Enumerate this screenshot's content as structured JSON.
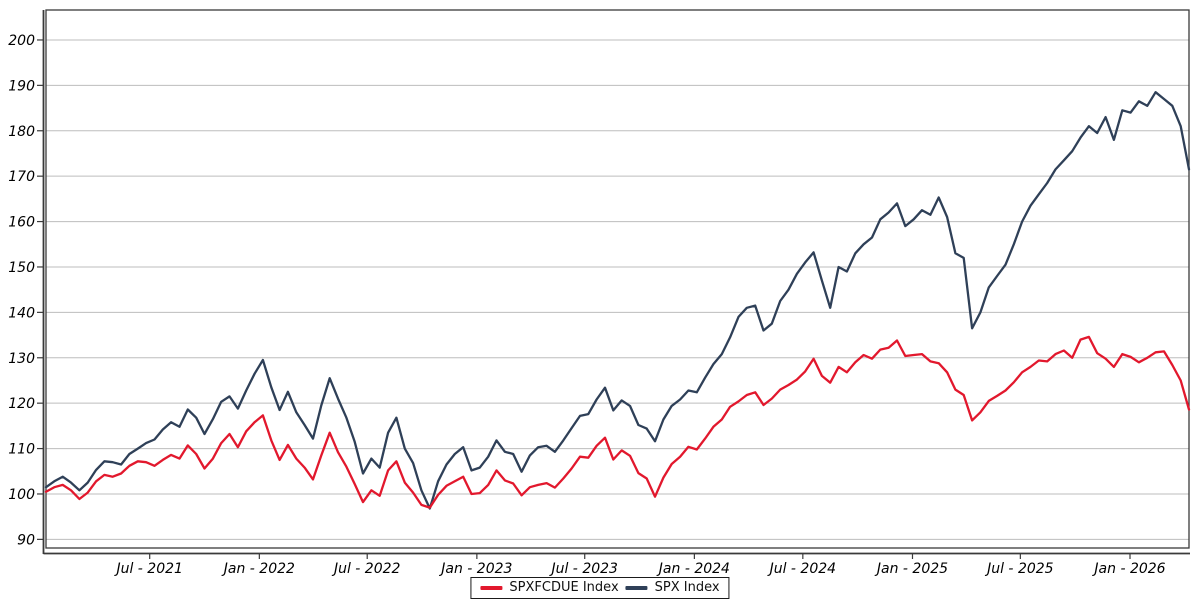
{
  "chart_data": {
    "type": "line",
    "title": "",
    "xlabel": "",
    "ylabel": "",
    "grid": "horizontal",
    "legend_position": "bottom-center",
    "y_ticks": [
      90,
      100,
      110,
      120,
      130,
      140,
      150,
      160,
      170,
      180,
      190,
      200
    ],
    "ylim": [
      88.1,
      206.6
    ],
    "x_tick_labels": [
      {
        "label": "Jul - 2021",
        "date": "2021-07-01"
      },
      {
        "label": "Jan - 2022",
        "date": "2022-01-01"
      },
      {
        "label": "Jul - 2022",
        "date": "2022-07-01"
      },
      {
        "label": "Jan - 2023",
        "date": "2023-01-01"
      },
      {
        "label": "Jul - 2023",
        "date": "2023-07-01"
      },
      {
        "label": "Jan - 2024",
        "date": "2024-01-01"
      },
      {
        "label": "Jul - 2024",
        "date": "2024-07-01"
      },
      {
        "label": "Jan - 2025",
        "date": "2025-01-01"
      },
      {
        "label": "Jul - 2025",
        "date": "2025-07-01"
      },
      {
        "label": "Jan - 2026",
        "date": "2026-01-01"
      }
    ],
    "dates": [
      "2021-01-08",
      "2021-01-22",
      "2021-02-05",
      "2021-02-19",
      "2021-03-05",
      "2021-03-19",
      "2021-04-02",
      "2021-04-16",
      "2021-04-30",
      "2021-05-14",
      "2021-05-28",
      "2021-06-11",
      "2021-06-25",
      "2021-07-09",
      "2021-07-23",
      "2021-08-06",
      "2021-08-20",
      "2021-09-03",
      "2021-09-17",
      "2021-10-01",
      "2021-10-15",
      "2021-10-29",
      "2021-11-12",
      "2021-11-26",
      "2021-12-10",
      "2021-12-24",
      "2022-01-07",
      "2022-01-21",
      "2022-02-04",
      "2022-02-18",
      "2022-03-04",
      "2022-03-18",
      "2022-04-01",
      "2022-04-15",
      "2022-04-29",
      "2022-05-13",
      "2022-05-27",
      "2022-06-10",
      "2022-06-24",
      "2022-07-08",
      "2022-07-22",
      "2022-08-05",
      "2022-08-19",
      "2022-09-02",
      "2022-09-16",
      "2022-09-30",
      "2022-10-14",
      "2022-10-28",
      "2022-11-11",
      "2022-11-25",
      "2022-12-09",
      "2022-12-23",
      "2023-01-06",
      "2023-01-20",
      "2023-02-03",
      "2023-02-17",
      "2023-03-03",
      "2023-03-17",
      "2023-03-31",
      "2023-04-14",
      "2023-04-28",
      "2023-05-12",
      "2023-05-26",
      "2023-06-09",
      "2023-06-23",
      "2023-07-07",
      "2023-07-21",
      "2023-08-04",
      "2023-08-18",
      "2023-09-01",
      "2023-09-15",
      "2023-09-29",
      "2023-10-13",
      "2023-10-27",
      "2023-11-10",
      "2023-11-24",
      "2023-12-08",
      "2023-12-22",
      "2024-01-05",
      "2024-01-19",
      "2024-02-02",
      "2024-02-16",
      "2024-03-01",
      "2024-03-15",
      "2024-03-29",
      "2024-04-12",
      "2024-04-26",
      "2024-05-10",
      "2024-05-24",
      "2024-06-07",
      "2024-06-21",
      "2024-07-05",
      "2024-07-19",
      "2024-08-02",
      "2024-08-16",
      "2024-08-30",
      "2024-09-13",
      "2024-09-27",
      "2024-10-11",
      "2024-10-25",
      "2024-11-08",
      "2024-11-22",
      "2024-12-06",
      "2024-12-20",
      "2025-01-03",
      "2025-01-17",
      "2025-01-31",
      "2025-02-14",
      "2025-02-28",
      "2025-03-14",
      "2025-03-28",
      "2025-04-11",
      "2025-04-25",
      "2025-05-09",
      "2025-05-23",
      "2025-06-06",
      "2025-06-20",
      "2025-07-04",
      "2025-07-18",
      "2025-08-01",
      "2025-08-15",
      "2025-08-29",
      "2025-09-12",
      "2025-09-26",
      "2025-10-10",
      "2025-10-24",
      "2025-11-07",
      "2025-11-21",
      "2025-12-05",
      "2025-12-19",
      "2026-01-02",
      "2026-01-16",
      "2026-01-30",
      "2026-02-13",
      "2026-02-27",
      "2026-03-13",
      "2026-03-27",
      "2026-04-10"
    ],
    "series": [
      {
        "name": "SPXFCDUE Index",
        "color": "#e2182d",
        "values": [
          100.5,
          101.5,
          102.0,
          100.8,
          98.9,
          100.3,
          102.8,
          104.2,
          103.8,
          104.5,
          106.2,
          107.2,
          107.0,
          106.2,
          107.5,
          108.6,
          107.8,
          110.7,
          108.8,
          105.6,
          107.8,
          111.2,
          113.2,
          110.3,
          113.8,
          115.8,
          117.3,
          111.8,
          107.5,
          110.8,
          107.8,
          105.8,
          103.2,
          108.5,
          113.5,
          109.2,
          106.0,
          102.2,
          98.2,
          100.8,
          99.6,
          105.2,
          107.2,
          102.5,
          100.3,
          97.6,
          97.0,
          99.8,
          101.8,
          102.8,
          103.8,
          100.0,
          100.2,
          102.0,
          105.2,
          103.0,
          102.3,
          99.7,
          101.5,
          102.0,
          102.4,
          101.4,
          103.4,
          105.6,
          108.2,
          108.0,
          110.6,
          112.4,
          107.6,
          109.6,
          108.4,
          104.6,
          103.4,
          99.4,
          103.6,
          106.6,
          108.2,
          110.4,
          109.8,
          112.2,
          114.8,
          116.4,
          119.2,
          120.4,
          121.8,
          122.4,
          119.6,
          121.0,
          123.0,
          124.0,
          125.2,
          127.0,
          129.8,
          126.0,
          124.5,
          128.0,
          126.8,
          129.0,
          130.6,
          129.8,
          131.8,
          132.2,
          133.8,
          130.4,
          130.6,
          130.8,
          129.2,
          128.8,
          126.8,
          123.0,
          121.8,
          116.2,
          118.0,
          120.5,
          121.6,
          122.8,
          124.6,
          126.8,
          128.0,
          129.4,
          129.2,
          130.8,
          131.6,
          130.0,
          134.0,
          134.6,
          131.0,
          129.8,
          128.0,
          130.8,
          130.2,
          129.0,
          130.0,
          131.2,
          131.4,
          128.4,
          125.0,
          118.6
        ]
      },
      {
        "name": "SPX Index",
        "color": "#2f4058",
        "values": [
          101.5,
          102.8,
          103.8,
          102.5,
          100.8,
          102.5,
          105.3,
          107.2,
          107.0,
          106.5,
          108.8,
          110.0,
          111.2,
          112.0,
          114.2,
          115.8,
          114.8,
          118.6,
          116.8,
          113.2,
          116.5,
          120.3,
          121.5,
          118.8,
          122.8,
          126.5,
          129.5,
          123.5,
          118.5,
          122.5,
          118.0,
          115.2,
          112.2,
          119.5,
          125.5,
          121.0,
          116.8,
          111.5,
          104.5,
          107.8,
          105.8,
          113.5,
          116.8,
          110.0,
          106.8,
          100.8,
          96.8,
          102.8,
          106.5,
          108.8,
          110.3,
          105.2,
          105.8,
          108.2,
          111.8,
          109.3,
          108.8,
          104.9,
          108.5,
          110.3,
          110.6,
          109.3,
          111.8,
          114.5,
          117.2,
          117.6,
          120.8,
          123.4,
          118.4,
          120.6,
          119.4,
          115.2,
          114.4,
          111.6,
          116.4,
          119.4,
          120.8,
          122.8,
          122.4,
          125.6,
          128.6,
          130.8,
          134.5,
          139.0,
          141.0,
          141.5,
          136.0,
          137.5,
          142.5,
          145.0,
          148.5,
          151.0,
          153.2,
          147.0,
          141.0,
          150.0,
          149.0,
          153.0,
          155.0,
          156.5,
          160.5,
          162.0,
          164.0,
          159.0,
          160.5,
          162.5,
          161.5,
          165.3,
          161.0,
          153.0,
          152.0,
          136.5,
          140.0,
          145.5,
          148.0,
          150.5,
          155.0,
          160.0,
          163.5,
          166.0,
          168.5,
          171.5,
          173.5,
          175.5,
          178.5,
          181.0,
          179.5,
          183.0,
          178.0,
          184.5,
          184.0,
          186.5,
          185.5,
          188.5,
          187.0,
          185.5,
          181.0,
          171.5
        ]
      }
    ]
  },
  "style": {
    "background": "#ffffff",
    "grid_color": "#bdbdbd",
    "axis_color": "#3a3a3a",
    "text_color": "#000000",
    "legend_border_color": "#1a1a1a"
  }
}
